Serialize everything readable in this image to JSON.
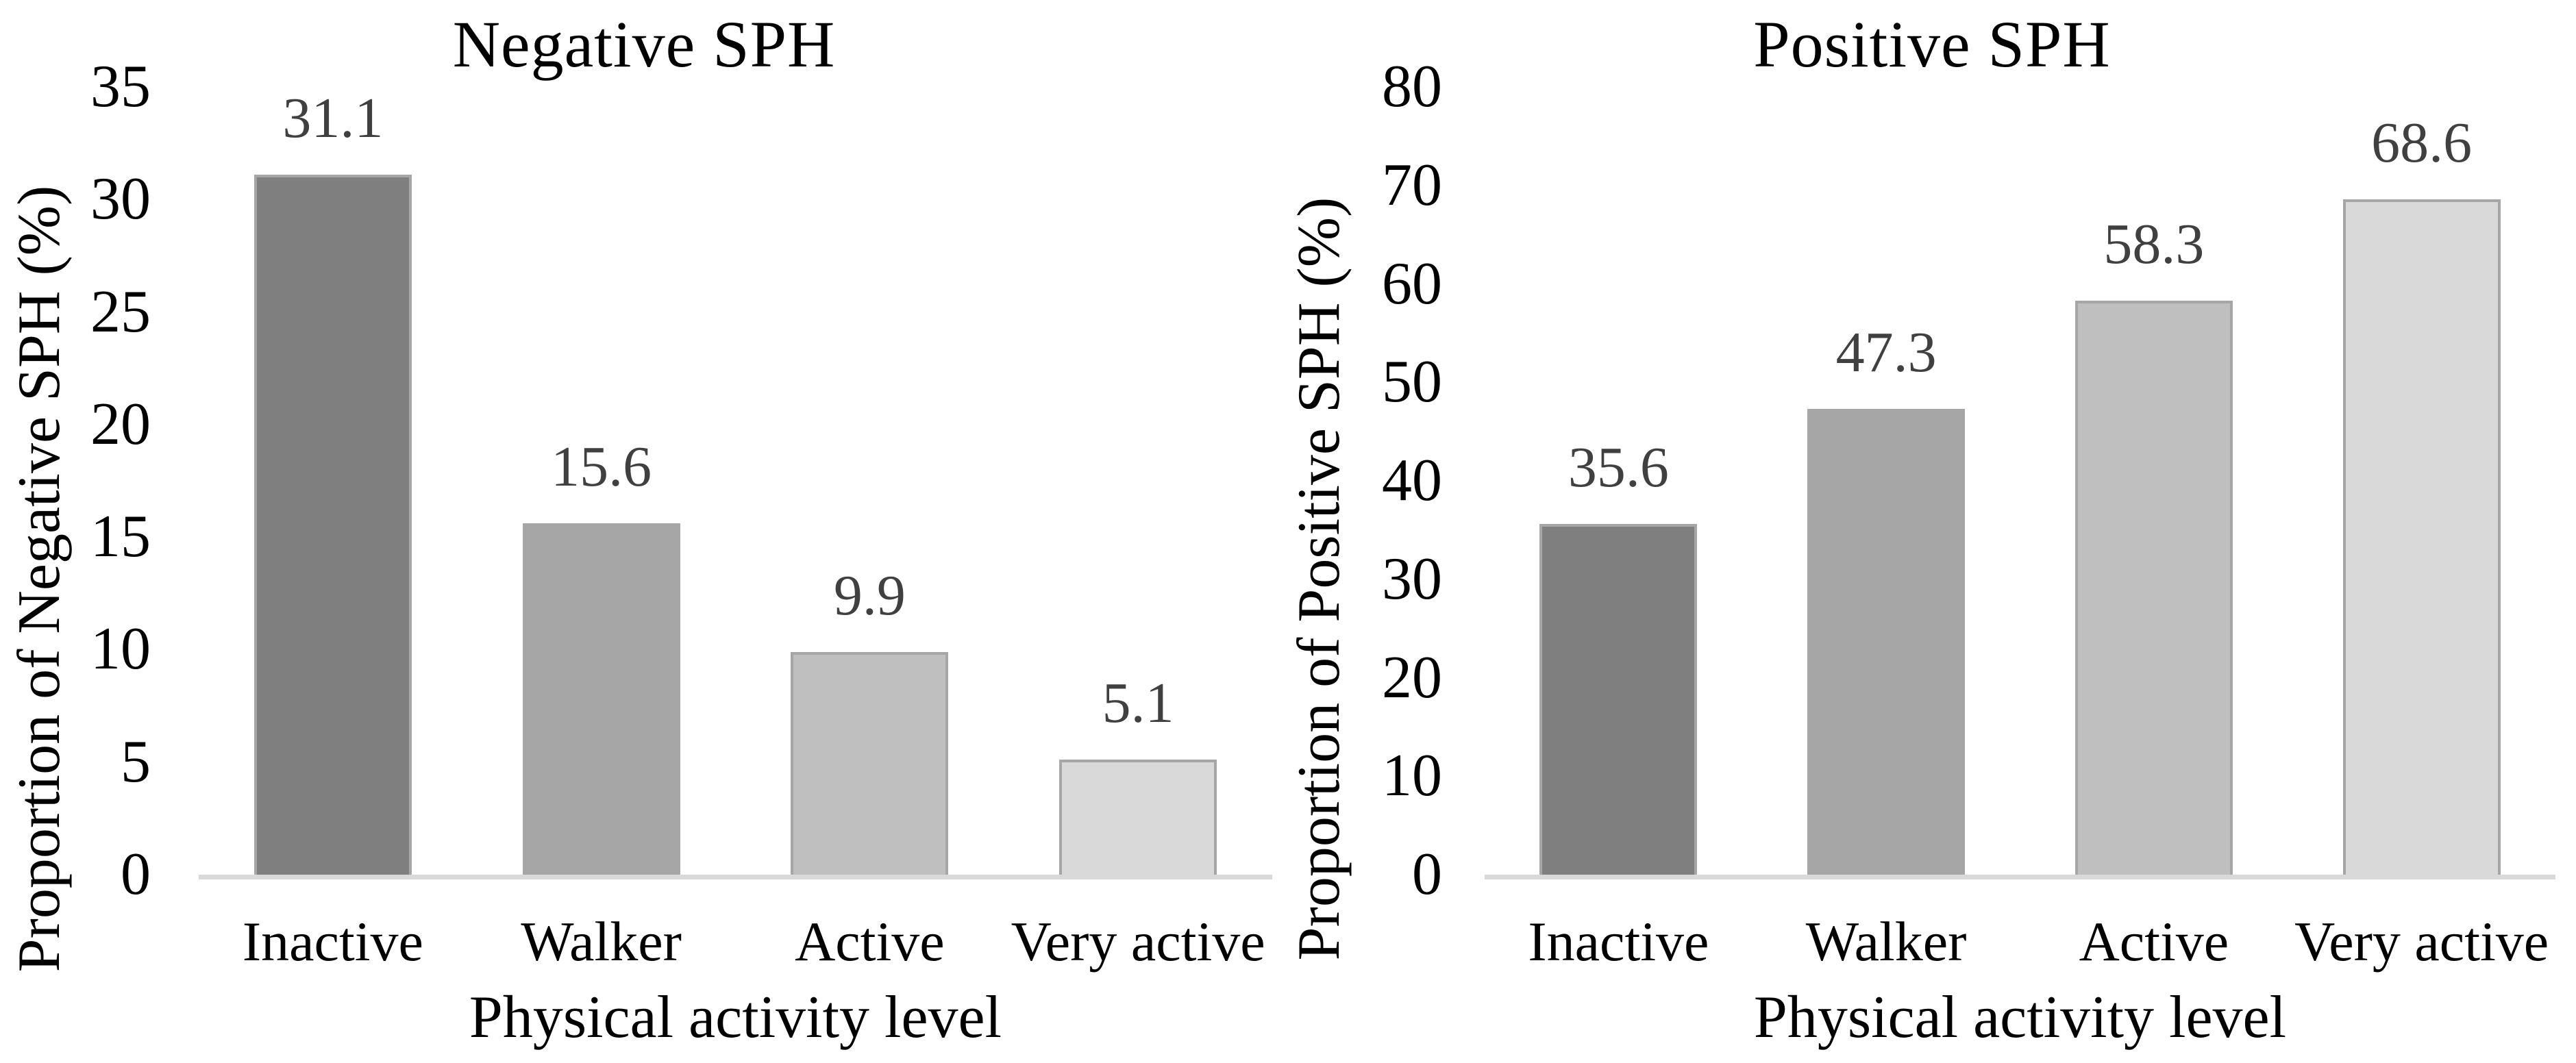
{
  "figure": {
    "background_color": "#ffffff",
    "text_color": "#000000",
    "data_label_color": "#404040",
    "axis_line_color": "#d9d9d9",
    "bar_border_color": "#a6a6a6"
  },
  "chart_data": [
    {
      "type": "bar",
      "title": "Negative SPH",
      "categories": [
        "Inactive",
        "Walker",
        "Active",
        "Very active"
      ],
      "values": [
        31.1,
        15.6,
        9.9,
        5.1
      ],
      "data_labels": [
        "31.1",
        "15.6",
        "9.9",
        "5.1"
      ],
      "xlabel": "Physical activity level",
      "ylabel": "Proportion of Negative SPH (%)",
      "ylim": [
        0,
        35
      ],
      "yticks": [
        0,
        5,
        10,
        15,
        20,
        25,
        30,
        35
      ],
      "grid": false,
      "legend": "none",
      "bar_colors": [
        "#7f7f7f",
        "#a6a6a6",
        "#bfbfbf",
        "#d9d9d9"
      ]
    },
    {
      "type": "bar",
      "title": "Positive SPH",
      "categories": [
        "Inactive",
        "Walker",
        "Active",
        "Very active"
      ],
      "values": [
        35.6,
        47.3,
        58.3,
        68.6
      ],
      "data_labels": [
        "35.6",
        "47.3",
        "58.3",
        "68.6"
      ],
      "xlabel": "Physical activity level",
      "ylabel": "Proportion of Positive SPH (%)",
      "ylim": [
        0,
        80
      ],
      "yticks": [
        0,
        10,
        20,
        30,
        40,
        50,
        60,
        70,
        80
      ],
      "grid": false,
      "legend": "none",
      "bar_colors": [
        "#7f7f7f",
        "#a6a6a6",
        "#bfbfbf",
        "#d9d9d9"
      ]
    }
  ]
}
